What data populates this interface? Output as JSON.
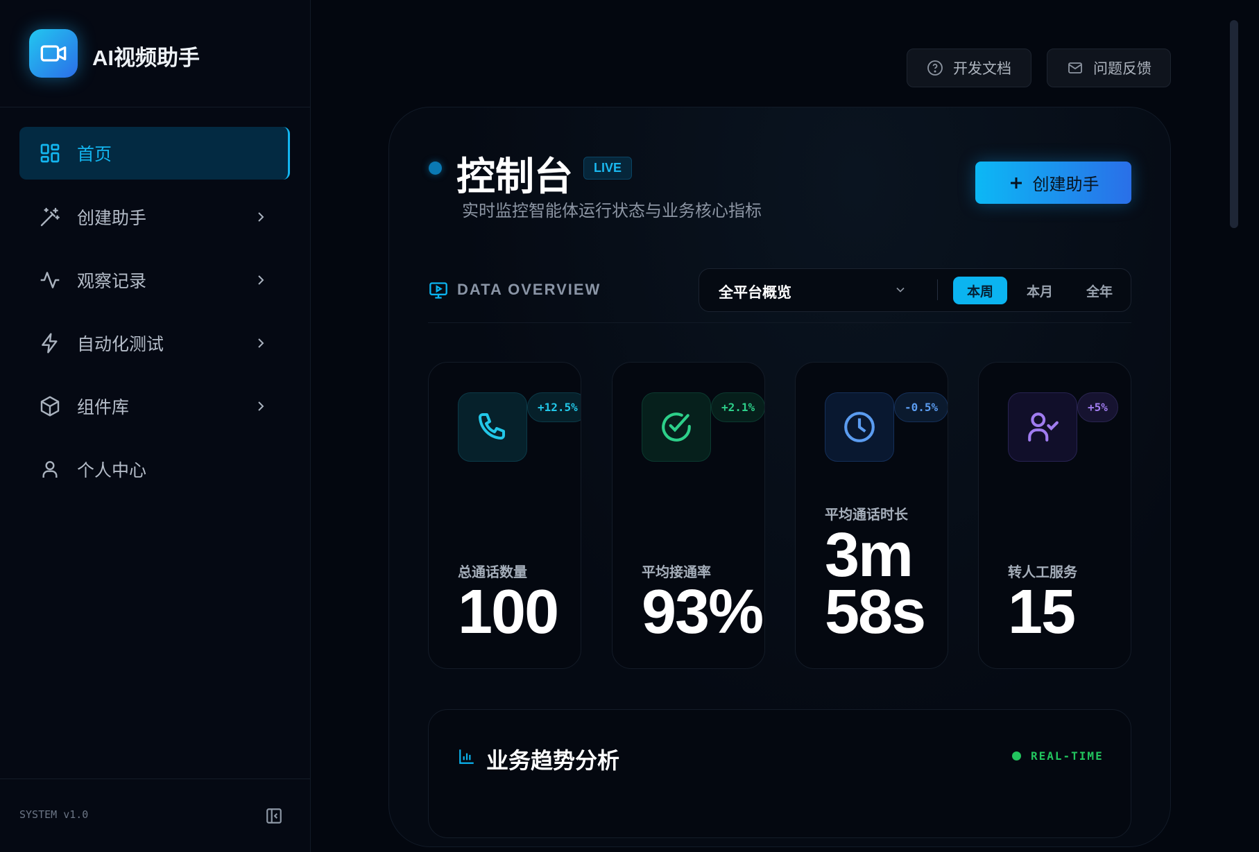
{
  "sidebar": {
    "app_title": "AI视频助手",
    "items": [
      {
        "label": "首页",
        "icon": "grid-icon",
        "active": true
      },
      {
        "label": "创建助手",
        "icon": "magic-wand-icon"
      },
      {
        "label": "观察记录",
        "icon": "activity-icon"
      },
      {
        "label": "自动化测试",
        "icon": "lightning-icon"
      },
      {
        "label": "组件库",
        "icon": "cube-icon"
      },
      {
        "label": "个人中心",
        "icon": "user-icon"
      }
    ],
    "version": "SYSTEM v1.0"
  },
  "topbar": {
    "docs": "开发文档",
    "feedback": "问题反馈"
  },
  "header": {
    "title": "控制台",
    "live": "LIVE",
    "subtitle": "实时监控智能体运行状态与业务核心指标",
    "create": "创建助手"
  },
  "overview": {
    "label": "DATA OVERVIEW",
    "select": "全平台概览",
    "periods": [
      "本周",
      "本月",
      "全年"
    ],
    "active_period": "本周"
  },
  "stats": [
    {
      "label": "总通话数量",
      "value": "100",
      "change": "+12.5%",
      "icon": "phone-icon",
      "color": "#22c7e8"
    },
    {
      "label": "平均接通率",
      "value": "93%",
      "change": "+2.1%",
      "icon": "check-circle-icon",
      "color": "#2dd08a"
    },
    {
      "label": "平均通话时长",
      "value_line1": "3m",
      "value_line2": "58s",
      "change": "-0.5%",
      "icon": "clock-icon",
      "color": "#5b9cf0"
    },
    {
      "label": "转人工服务",
      "value": "15",
      "change": "+5%",
      "icon": "user-check-icon",
      "color": "#a07cf0"
    }
  ],
  "trend": {
    "title": "业务趋势分析",
    "status": "REAL-TIME"
  },
  "colors": {
    "accent": "#0bb4f0",
    "background": "#03070f",
    "active_nav": "#032a42",
    "realtime": "#22c55e"
  }
}
